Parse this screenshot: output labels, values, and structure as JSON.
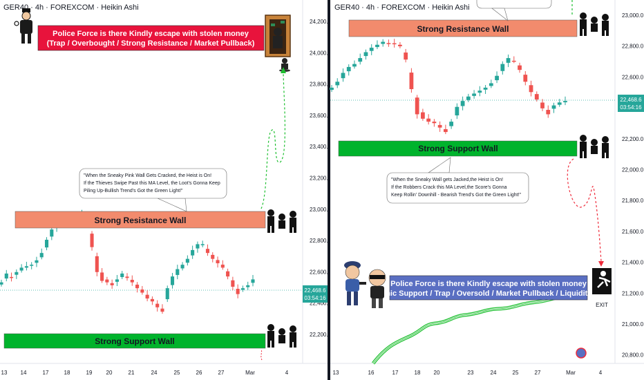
{
  "chart_data": [
    {
      "type": "candlestick",
      "panel": "left",
      "title": "GER40 · 4h · FOREXCOM · Heikin Ashi",
      "y_ticks": [
        "24,200.0",
        "24,000.0",
        "23,800.0",
        "23,600.0",
        "23,400.0",
        "23,200.0",
        "23,000.0",
        "22,800.0",
        "22,600.0",
        "22,400.0",
        "22,200.0"
      ],
      "x_ticks": [
        "13",
        "14",
        "17",
        "18",
        "19",
        "20",
        "21",
        "24",
        "25",
        "26",
        "27",
        "Mar",
        "4"
      ],
      "ylim": [
        22030,
        24280
      ],
      "last_price": "22,468.6",
      "countdown": "03:54:16",
      "close_path": [
        22460,
        22520,
        22490,
        22530,
        22560,
        22570,
        22580,
        22610,
        22660,
        22750,
        22820,
        22870,
        22890,
        22900,
        22890,
        22910,
        22930,
        22870,
        22700,
        22530,
        22470,
        22460,
        22440,
        22480,
        22520,
        22490,
        22460,
        22420,
        22390,
        22350,
        22330,
        22290,
        22260,
        22420,
        22500,
        22550,
        22580,
        22620,
        22680,
        22720,
        22720,
        22660,
        22620,
        22590,
        22560,
        22500,
        22430,
        22380,
        22420,
        22440,
        22480
      ],
      "support_wall": {
        "label": "Strong Support Wall",
        "price": 22190
      },
      "resistance_wall": {
        "label": "Strong Resistance Wall",
        "price": 22870
      },
      "banner": {
        "line1": "Police Force is there Kindly escape with stolen money",
        "line2": "(Trap / Overbought / Strong Resistance / Market Pullback)"
      },
      "note": [
        "\"When the Sneaky Pink Wall Gets Cracked, the Heist is On!",
        "If the Thieves Swipe Past this MA Level, the Loot's Gonna Keep",
        "Piling Up-Bullish Trend's Got the Green Light!\""
      ],
      "colors": {
        "bull": "#26a69a",
        "bear": "#ef5350",
        "price_label": "#26a69a"
      }
    },
    {
      "type": "candlestick",
      "panel": "right",
      "title": "GER40 · 4h · FOREXCOM · Heikin Ashi",
      "y_ticks": [
        "23,000.0",
        "22,800.0",
        "22,600.0",
        "22,400.0",
        "22,200.0",
        "22,000.0",
        "21,800.0",
        "21,600.0",
        "21,400.0",
        "21,200.0",
        "21,000.0",
        "20,800.0"
      ],
      "x_ticks": [
        "13",
        "16",
        "17",
        "18",
        "20",
        "23",
        "24",
        "25",
        "27",
        "Mar",
        "4"
      ],
      "ylim": [
        20770,
        23050
      ],
      "last_price": "22,468.6",
      "countdown": "03:54:16",
      "close_path": [
        22560,
        22600,
        22660,
        22700,
        22720,
        22760,
        22800,
        22830,
        22850,
        22870,
        22860,
        22860,
        22840,
        22750,
        22550,
        22380,
        22350,
        22330,
        22320,
        22290,
        22260,
        22330,
        22430,
        22470,
        22500,
        22520,
        22540,
        22560,
        22590,
        22640,
        22720,
        22760,
        22740,
        22680,
        22600,
        22530,
        22480,
        22420,
        22380,
        22440,
        22460,
        22470
      ],
      "support_wall": {
        "label": "Strong Support Wall",
        "price": 22170
      },
      "resistance_wall": {
        "label": "Strong Resistance Wall",
        "price": 22910
      },
      "banner": {
        "line1": "Police Force is there Kindly escape with stolen money",
        "line2": "(Dynamic Support / Trap / Oversold / Market Pullback / Liquidity Zone)"
      },
      "note": [
        "\"When the Sneaky Wall gets Jacked,the Heist is On!",
        "If the Robbers Crack this MA Level,the Score's Gonna",
        "Keep Rollin' Downhill - Bearish Trend's Got the Green Light!\""
      ],
      "exit_label": "EXIT",
      "colors": {
        "bull": "#26a69a",
        "bear": "#ef5350",
        "price_label": "#26a69a"
      }
    }
  ]
}
